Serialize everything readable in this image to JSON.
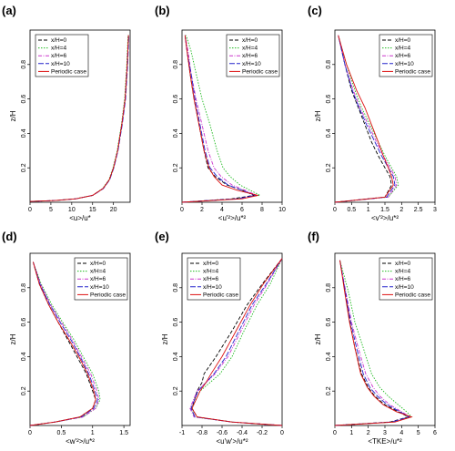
{
  "colors": {
    "x/H=0": "#000000",
    "x/H=4": "#22bb22",
    "x/H=6": "#cc33cc",
    "x/H=10": "#2222cc",
    "Periodic case": "#dd1111"
  },
  "chart_data": [
    {
      "type": "line",
      "panel_label": "(a)",
      "xlabel": "<u>/u*",
      "ylabel": "z/H",
      "xlim": [
        0,
        24
      ],
      "ylim": [
        0,
        1
      ],
      "xticks": [
        0,
        5,
        10,
        15,
        20
      ],
      "yticks": [
        0.2,
        0.4,
        0.6,
        0.8
      ],
      "grid": false,
      "legend": "top-left",
      "series": [
        {
          "name": "x/H=0",
          "x": [
            0,
            6,
            11,
            15,
            17.5,
            19,
            20,
            21,
            22,
            22.8,
            23.3,
            23.6
          ],
          "y": [
            0.005,
            0.01,
            0.02,
            0.04,
            0.08,
            0.13,
            0.2,
            0.3,
            0.45,
            0.6,
            0.8,
            0.97
          ]
        },
        {
          "name": "x/H=4",
          "x": [
            0,
            6,
            11,
            15,
            17.4,
            18.9,
            19.9,
            20.9,
            21.9,
            22.7,
            23.2,
            23.5
          ],
          "y": [
            0.005,
            0.01,
            0.02,
            0.04,
            0.08,
            0.13,
            0.2,
            0.3,
            0.45,
            0.6,
            0.8,
            0.97
          ]
        },
        {
          "name": "x/H=6",
          "x": [
            0,
            6,
            11,
            15,
            17.5,
            19,
            20,
            21,
            22,
            22.8,
            23.3,
            23.6
          ],
          "y": [
            0.005,
            0.01,
            0.02,
            0.04,
            0.08,
            0.13,
            0.2,
            0.3,
            0.45,
            0.6,
            0.8,
            0.97
          ]
        },
        {
          "name": "x/H=10",
          "x": [
            0,
            6,
            11,
            15.1,
            17.6,
            19.1,
            20.1,
            21.1,
            22.1,
            22.9,
            23.4,
            23.7
          ],
          "y": [
            0.005,
            0.01,
            0.02,
            0.04,
            0.08,
            0.13,
            0.2,
            0.3,
            0.45,
            0.6,
            0.8,
            0.97
          ]
        },
        {
          "name": "Periodic case",
          "x": [
            0,
            6,
            11,
            15,
            17.5,
            19,
            20,
            21,
            22,
            22.8,
            23.3,
            23.6
          ],
          "y": [
            0.005,
            0.01,
            0.02,
            0.04,
            0.08,
            0.13,
            0.2,
            0.3,
            0.45,
            0.6,
            0.8,
            0.97
          ]
        }
      ]
    },
    {
      "type": "line",
      "panel_label": "(b)",
      "xlabel": "<u'²>/u*²",
      "ylabel": "",
      "xlim": [
        0,
        10
      ],
      "ylim": [
        0,
        1
      ],
      "xticks": [
        0,
        2,
        4,
        6,
        8,
        10
      ],
      "yticks": [
        0.2,
        0.4,
        0.6,
        0.8
      ],
      "grid": false,
      "legend": "top-right",
      "series": [
        {
          "name": "x/H=0",
          "x": [
            0,
            5,
            7.2,
            6,
            4.5,
            3.3,
            2.6,
            2.2,
            1.7,
            1.2,
            0.8,
            0.5,
            0.3
          ],
          "y": [
            0.0,
            0.02,
            0.04,
            0.07,
            0.1,
            0.15,
            0.2,
            0.3,
            0.45,
            0.6,
            0.75,
            0.88,
            0.97
          ]
        },
        {
          "name": "x/H=4",
          "x": [
            0,
            5.5,
            7.8,
            6.8,
            5.8,
            4.8,
            4.1,
            3.5,
            2.8,
            2.0,
            1.4,
            0.9,
            0.4
          ],
          "y": [
            0.0,
            0.02,
            0.04,
            0.07,
            0.1,
            0.15,
            0.2,
            0.3,
            0.45,
            0.6,
            0.75,
            0.88,
            0.97
          ]
        },
        {
          "name": "x/H=6",
          "x": [
            0,
            5.5,
            7.5,
            6.3,
            5.0,
            3.9,
            3.2,
            2.6,
            2.0,
            1.4,
            0.9,
            0.6,
            0.3
          ],
          "y": [
            0.0,
            0.02,
            0.04,
            0.07,
            0.1,
            0.15,
            0.2,
            0.3,
            0.45,
            0.6,
            0.75,
            0.88,
            0.97
          ]
        },
        {
          "name": "x/H=10",
          "x": [
            0,
            5.5,
            7.3,
            6.0,
            4.6,
            3.5,
            2.8,
            2.3,
            1.8,
            1.3,
            0.9,
            0.5,
            0.3
          ],
          "y": [
            0.0,
            0.02,
            0.04,
            0.07,
            0.1,
            0.15,
            0.2,
            0.3,
            0.45,
            0.6,
            0.75,
            0.88,
            0.97
          ]
        },
        {
          "name": "Periodic case",
          "x": [
            0,
            6,
            7.6,
            5.5,
            4.0,
            3.2,
            2.7,
            2.2,
            1.7,
            1.2,
            0.8,
            0.5,
            0.3
          ],
          "y": [
            0.0,
            0.02,
            0.04,
            0.07,
            0.1,
            0.15,
            0.2,
            0.3,
            0.45,
            0.6,
            0.75,
            0.88,
            0.97
          ]
        }
      ]
    },
    {
      "type": "line",
      "panel_label": "(c)",
      "xlabel": "<v'²>/u*²",
      "ylabel": "z/H",
      "xlim": [
        0,
        3
      ],
      "ylim": [
        0,
        1
      ],
      "xticks": [
        0,
        0.5,
        1.0,
        1.5,
        2.0,
        2.5,
        3.0
      ],
      "yticks": [
        0.2,
        0.4,
        0.6,
        0.8
      ],
      "grid": false,
      "legend": "top-right",
      "series": [
        {
          "name": "x/H=0",
          "x": [
            0,
            1.5,
            1.7,
            1.65,
            1.5,
            1.3,
            1.1,
            0.9,
            0.7,
            0.5,
            0.3,
            0.1
          ],
          "y": [
            0.0,
            0.03,
            0.1,
            0.15,
            0.2,
            0.27,
            0.35,
            0.45,
            0.55,
            0.65,
            0.8,
            0.97
          ]
        },
        {
          "name": "x/H=4",
          "x": [
            0,
            1.6,
            1.9,
            1.85,
            1.7,
            1.5,
            1.3,
            1.05,
            0.8,
            0.6,
            0.35,
            0.1
          ],
          "y": [
            0.0,
            0.03,
            0.1,
            0.15,
            0.2,
            0.27,
            0.35,
            0.45,
            0.55,
            0.65,
            0.8,
            0.97
          ]
        },
        {
          "name": "x/H=6",
          "x": [
            0,
            1.6,
            1.85,
            1.8,
            1.65,
            1.45,
            1.25,
            1.0,
            0.75,
            0.55,
            0.3,
            0.1
          ],
          "y": [
            0.0,
            0.03,
            0.1,
            0.15,
            0.2,
            0.27,
            0.35,
            0.45,
            0.55,
            0.65,
            0.8,
            0.97
          ]
        },
        {
          "name": "x/H=10",
          "x": [
            0,
            1.55,
            1.8,
            1.75,
            1.6,
            1.4,
            1.2,
            0.95,
            0.72,
            0.52,
            0.3,
            0.1
          ],
          "y": [
            0.0,
            0.03,
            0.1,
            0.15,
            0.2,
            0.27,
            0.35,
            0.45,
            0.55,
            0.65,
            0.8,
            0.97
          ]
        },
        {
          "name": "Periodic case",
          "x": [
            0,
            1.5,
            1.75,
            1.7,
            1.6,
            1.45,
            1.3,
            1.1,
            0.9,
            0.65,
            0.35,
            0.1
          ],
          "y": [
            0.0,
            0.03,
            0.1,
            0.15,
            0.2,
            0.27,
            0.35,
            0.45,
            0.55,
            0.65,
            0.8,
            0.97
          ]
        }
      ]
    },
    {
      "type": "line",
      "panel_label": "(d)",
      "xlabel": "<w'²>/u*²",
      "ylabel": "z/H",
      "xlim": [
        0,
        1.6
      ],
      "ylim": [
        0,
        1
      ],
      "xticks": [
        0,
        0.5,
        1.0,
        1.5
      ],
      "yticks": [
        0.2,
        0.4,
        0.6,
        0.8
      ],
      "grid": false,
      "legend": "top-right",
      "series": [
        {
          "name": "x/H=0",
          "x": [
            0,
            0.4,
            0.8,
            1.0,
            1.05,
            1.0,
            0.9,
            0.75,
            0.6,
            0.45,
            0.3,
            0.15,
            0.05
          ],
          "y": [
            0.0,
            0.02,
            0.05,
            0.1,
            0.15,
            0.2,
            0.3,
            0.4,
            0.5,
            0.6,
            0.7,
            0.82,
            0.95
          ]
        },
        {
          "name": "x/H=4",
          "x": [
            0,
            0.4,
            0.85,
            1.05,
            1.12,
            1.1,
            1.0,
            0.85,
            0.7,
            0.52,
            0.35,
            0.18,
            0.05
          ],
          "y": [
            0.0,
            0.02,
            0.05,
            0.1,
            0.15,
            0.2,
            0.3,
            0.4,
            0.5,
            0.6,
            0.7,
            0.82,
            0.95
          ]
        },
        {
          "name": "x/H=6",
          "x": [
            0,
            0.4,
            0.85,
            1.05,
            1.1,
            1.07,
            0.97,
            0.82,
            0.67,
            0.5,
            0.33,
            0.17,
            0.05
          ],
          "y": [
            0.0,
            0.02,
            0.05,
            0.1,
            0.15,
            0.2,
            0.3,
            0.4,
            0.5,
            0.6,
            0.7,
            0.82,
            0.95
          ]
        },
        {
          "name": "x/H=10",
          "x": [
            0,
            0.4,
            0.82,
            1.02,
            1.08,
            1.04,
            0.94,
            0.8,
            0.65,
            0.48,
            0.32,
            0.16,
            0.05
          ],
          "y": [
            0.0,
            0.02,
            0.05,
            0.1,
            0.15,
            0.2,
            0.3,
            0.4,
            0.5,
            0.6,
            0.7,
            0.82,
            0.95
          ]
        },
        {
          "name": "Periodic case",
          "x": [
            0,
            0.4,
            0.8,
            1.0,
            1.05,
            1.02,
            0.92,
            0.78,
            0.62,
            0.45,
            0.3,
            0.15,
            0.05
          ],
          "y": [
            0.0,
            0.02,
            0.05,
            0.1,
            0.15,
            0.2,
            0.3,
            0.4,
            0.5,
            0.6,
            0.7,
            0.82,
            0.95
          ]
        }
      ]
    },
    {
      "type": "line",
      "panel_label": "(e)",
      "xlabel": "<u'w'>/u*²",
      "ylabel": "z/H",
      "xlim": [
        -1.0,
        0.0
      ],
      "ylim": [
        0,
        1
      ],
      "xticks": [
        -1.0,
        -0.8,
        -0.6,
        -0.4,
        -0.2,
        0.0
      ],
      "yticks": [
        0.2,
        0.4,
        0.6,
        0.8
      ],
      "grid": false,
      "legend": "top-left",
      "series": [
        {
          "name": "x/H=0",
          "x": [
            0.0,
            -0.5,
            -0.85,
            -0.9,
            -0.85,
            -0.8,
            -0.78,
            -0.66,
            -0.5,
            -0.35,
            -0.2,
            0.0
          ],
          "y": [
            0.0,
            0.02,
            0.05,
            0.1,
            0.2,
            0.25,
            0.3,
            0.4,
            0.55,
            0.7,
            0.82,
            0.97
          ]
        },
        {
          "name": "x/H=4",
          "x": [
            0.0,
            -0.5,
            -0.88,
            -0.9,
            -0.82,
            -0.72,
            -0.62,
            -0.5,
            -0.38,
            -0.25,
            -0.12,
            0.0
          ],
          "y": [
            0.0,
            0.02,
            0.05,
            0.1,
            0.2,
            0.25,
            0.3,
            0.4,
            0.55,
            0.7,
            0.82,
            0.97
          ]
        },
        {
          "name": "x/H=6",
          "x": [
            0.0,
            -0.5,
            -0.88,
            -0.92,
            -0.85,
            -0.76,
            -0.67,
            -0.54,
            -0.41,
            -0.28,
            -0.15,
            0.0
          ],
          "y": [
            0.0,
            0.02,
            0.05,
            0.1,
            0.2,
            0.25,
            0.3,
            0.4,
            0.55,
            0.7,
            0.82,
            0.97
          ]
        },
        {
          "name": "x/H=10",
          "x": [
            0.0,
            -0.5,
            -0.87,
            -0.91,
            -0.84,
            -0.76,
            -0.68,
            -0.56,
            -0.43,
            -0.3,
            -0.16,
            0.0
          ],
          "y": [
            0.0,
            0.02,
            0.05,
            0.1,
            0.2,
            0.25,
            0.3,
            0.4,
            0.55,
            0.7,
            0.82,
            0.97
          ]
        },
        {
          "name": "Periodic case",
          "x": [
            0.0,
            -0.5,
            -0.85,
            -0.9,
            -0.82,
            -0.76,
            -0.71,
            -0.6,
            -0.46,
            -0.32,
            -0.19,
            0.0
          ],
          "y": [
            0.0,
            0.02,
            0.05,
            0.1,
            0.2,
            0.25,
            0.3,
            0.4,
            0.55,
            0.7,
            0.82,
            0.97
          ]
        }
      ]
    },
    {
      "type": "line",
      "panel_label": "(f)",
      "xlabel": "<TKE>/u*²",
      "ylabel": "z/H",
      "xlim": [
        0,
        6
      ],
      "ylim": [
        0,
        1
      ],
      "xticks": [
        0,
        1,
        2,
        3,
        4,
        5,
        6
      ],
      "yticks": [
        0.2,
        0.4,
        0.6,
        0.8
      ],
      "grid": false,
      "legend": "top-right",
      "series": [
        {
          "name": "x/H=0",
          "x": [
            0,
            3.3,
            4.4,
            3.8,
            3.0,
            2.4,
            2.0,
            1.6,
            1.2,
            0.9,
            0.6,
            0.3
          ],
          "y": [
            0.0,
            0.02,
            0.05,
            0.08,
            0.12,
            0.17,
            0.22,
            0.3,
            0.45,
            0.6,
            0.78,
            0.96
          ]
        },
        {
          "name": "x/H=4",
          "x": [
            0,
            3.5,
            4.6,
            4.3,
            3.8,
            3.2,
            2.7,
            2.2,
            1.7,
            1.2,
            0.8,
            0.3
          ],
          "y": [
            0.0,
            0.02,
            0.05,
            0.08,
            0.12,
            0.17,
            0.22,
            0.3,
            0.45,
            0.6,
            0.78,
            0.96
          ]
        },
        {
          "name": "x/H=6",
          "x": [
            0,
            3.4,
            4.5,
            4.0,
            3.3,
            2.7,
            2.3,
            1.85,
            1.4,
            1.0,
            0.65,
            0.3
          ],
          "y": [
            0.0,
            0.02,
            0.05,
            0.08,
            0.12,
            0.17,
            0.22,
            0.3,
            0.45,
            0.6,
            0.78,
            0.96
          ]
        },
        {
          "name": "x/H=10",
          "x": [
            0,
            3.4,
            4.45,
            3.9,
            3.15,
            2.55,
            2.1,
            1.7,
            1.3,
            0.95,
            0.62,
            0.3
          ],
          "y": [
            0.0,
            0.02,
            0.05,
            0.08,
            0.12,
            0.17,
            0.22,
            0.3,
            0.45,
            0.6,
            0.78,
            0.96
          ]
        },
        {
          "name": "Periodic case",
          "x": [
            0,
            3.6,
            4.6,
            3.7,
            2.9,
            2.35,
            1.95,
            1.55,
            1.2,
            0.88,
            0.58,
            0.3
          ],
          "y": [
            0.0,
            0.02,
            0.05,
            0.08,
            0.12,
            0.17,
            0.22,
            0.3,
            0.45,
            0.6,
            0.78,
            0.96
          ]
        }
      ]
    }
  ]
}
